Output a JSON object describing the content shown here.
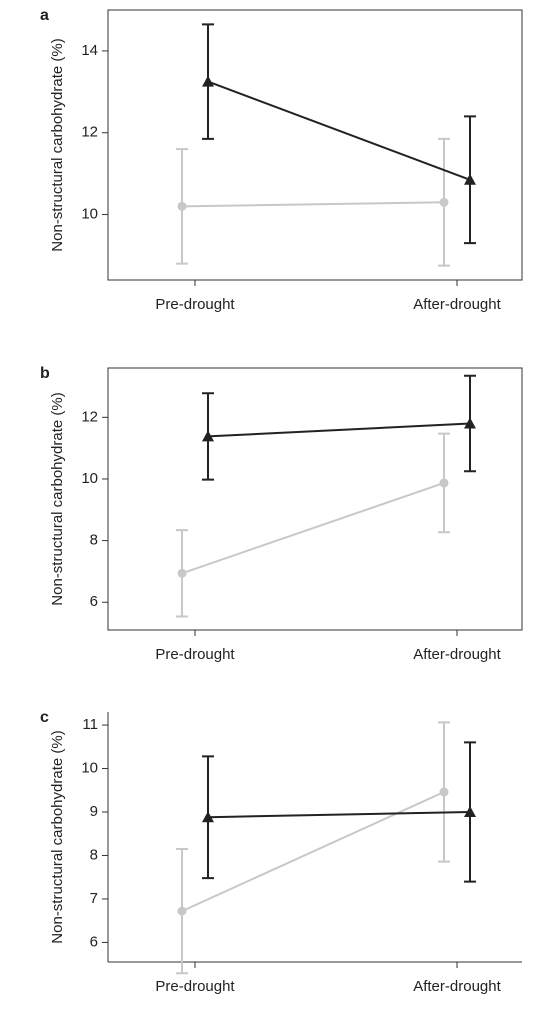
{
  "chart_data": [
    {
      "type": "line",
      "label": "a",
      "y_label": "Non-structural carbohydrate (%)",
      "categories": [
        "Pre-drought",
        "After-drought"
      ],
      "series": [
        {
          "color": "#c8c8c8",
          "marker": "circle",
          "values": [
            10.2,
            10.3
          ],
          "errors": [
            1.4,
            1.55
          ]
        },
        {
          "color": "#222222",
          "marker": "triangle",
          "values": [
            13.25,
            10.85
          ],
          "errors": [
            1.4,
            1.55
          ]
        }
      ],
      "ylim": [
        8.4,
        15
      ],
      "yticks": [
        10,
        12,
        14
      ],
      "frame": true
    },
    {
      "type": "line",
      "label": "b",
      "y_label": "Non-structural carbohydrate (%)",
      "categories": [
        "Pre-drought",
        "After-drought"
      ],
      "series": [
        {
          "color": "#c8c8c8",
          "marker": "circle",
          "values": [
            6.94,
            9.87
          ],
          "errors": [
            1.4,
            1.6
          ]
        },
        {
          "color": "#222222",
          "marker": "triangle",
          "values": [
            11.38,
            11.8
          ],
          "errors": [
            1.4,
            1.55
          ]
        }
      ],
      "ylim": [
        5.1,
        13.6
      ],
      "yticks": [
        6,
        8,
        10,
        12
      ],
      "frame": true
    },
    {
      "type": "line",
      "label": "c",
      "y_label": "Non-structural carbohydrate (%)",
      "categories": [
        "Pre-drought",
        "After-drought"
      ],
      "series": [
        {
          "color": "#c8c8c8",
          "marker": "circle",
          "values": [
            6.72,
            9.46
          ],
          "errors": [
            1.43,
            1.6
          ]
        },
        {
          "color": "#222222",
          "marker": "triangle",
          "values": [
            8.88,
            9.0
          ],
          "errors": [
            1.4,
            1.6
          ]
        }
      ],
      "ylim": [
        5.55,
        11.3
      ],
      "yticks": [
        6,
        7,
        8,
        9,
        10,
        11
      ],
      "frame": false
    }
  ]
}
